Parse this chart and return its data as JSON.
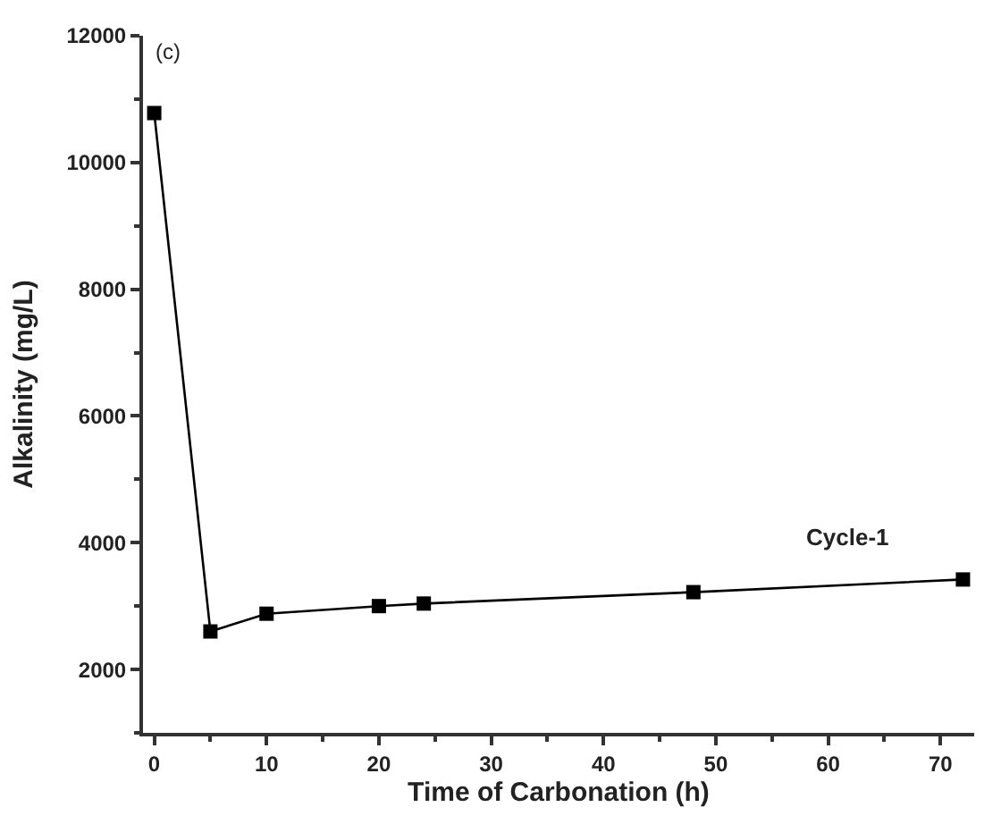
{
  "chart_data": {
    "type": "line",
    "xlabel": "Time of Carbonation (h)",
    "ylabel": "Alkalinity (mg/L)",
    "annotations": [
      "(c)"
    ],
    "x": [
      0,
      5,
      10,
      20,
      24,
      48,
      72
    ],
    "series": [
      {
        "name": "Cycle-1",
        "color": "#000000",
        "values": [
          10780,
          2600,
          2880,
          3000,
          3040,
          3220,
          3420
        ]
      }
    ],
    "xlim": [
      -1,
      73
    ],
    "xticks": [
      0,
      10,
      20,
      30,
      40,
      50,
      60,
      70
    ],
    "ylim": [
      1000,
      12000
    ],
    "yticks": [
      2000,
      4000,
      6000,
      8000,
      10000,
      12000
    ],
    "legend": false,
    "marker": "square",
    "line_style": "solid"
  }
}
